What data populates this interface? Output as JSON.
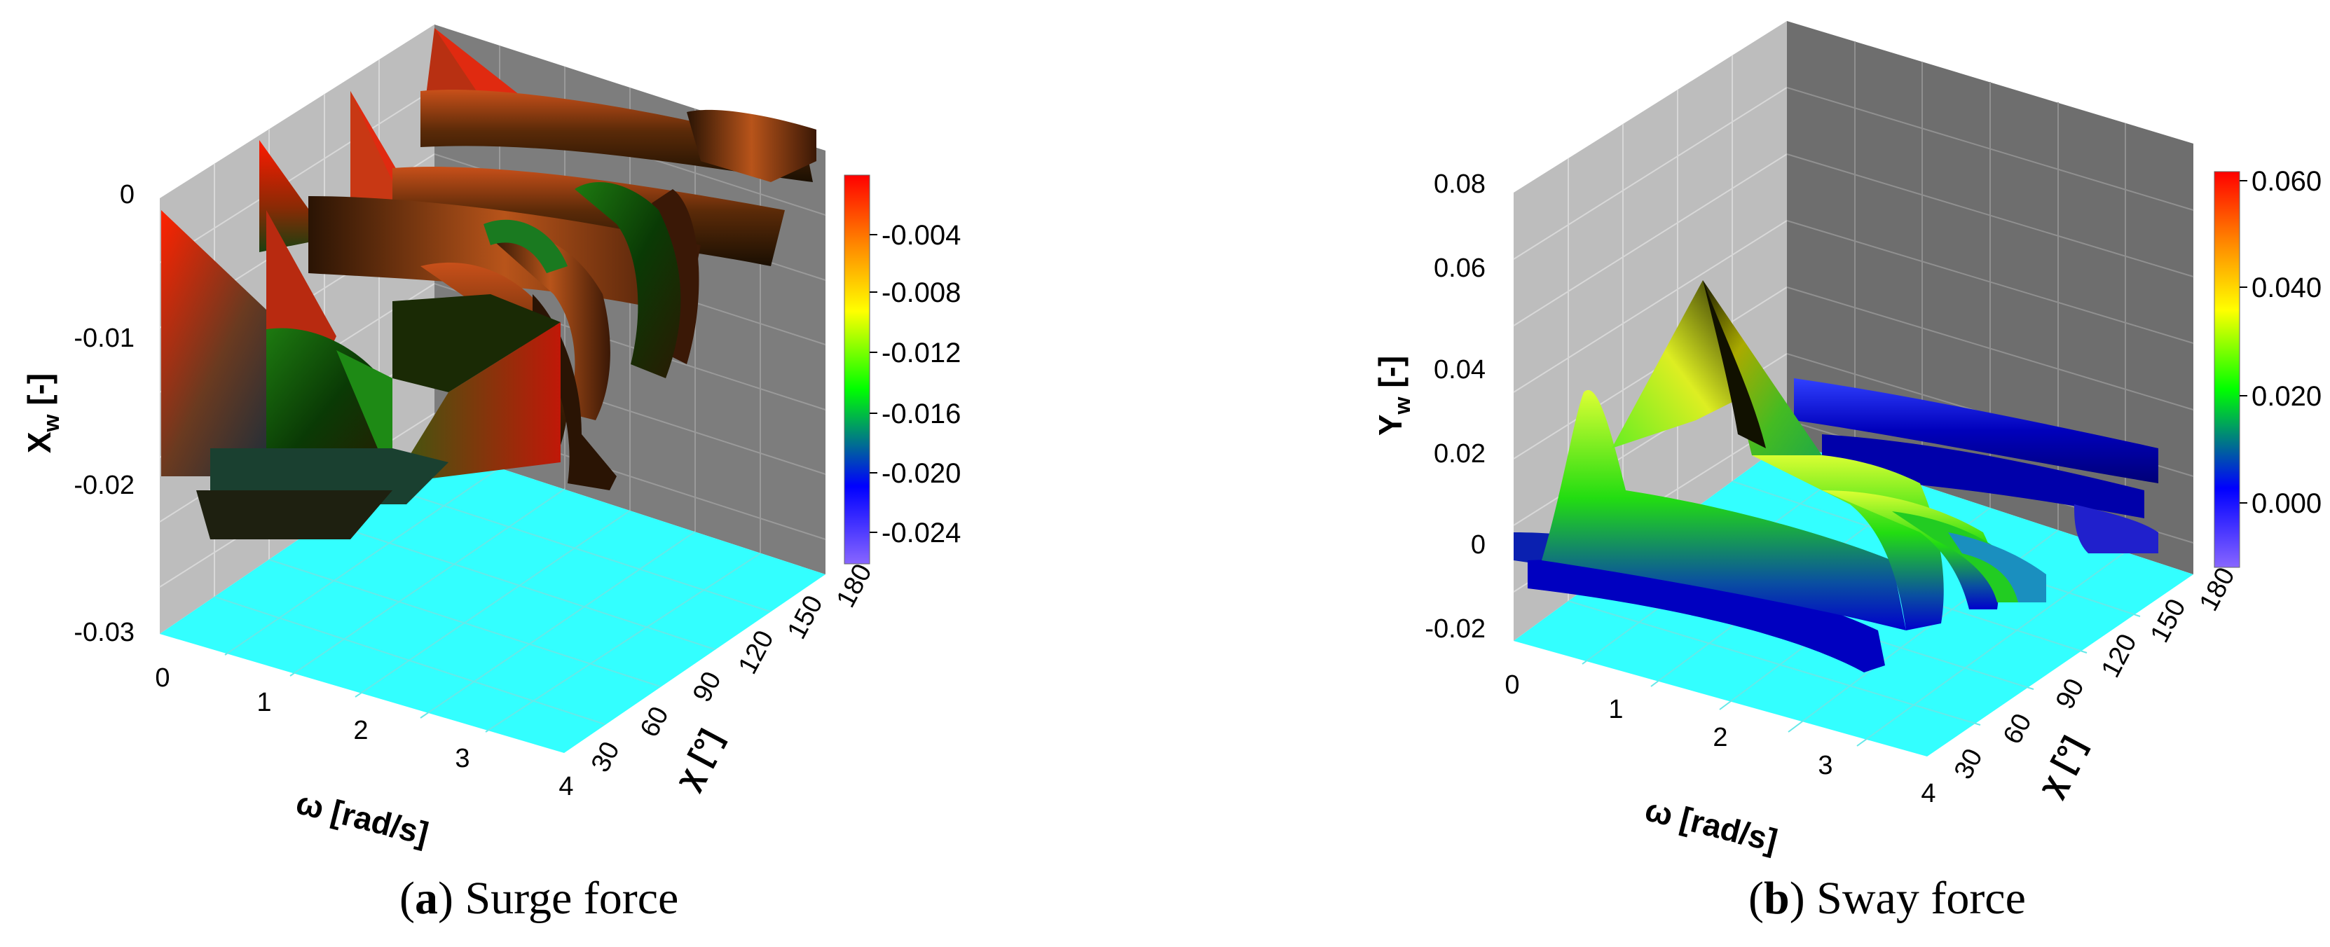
{
  "captions": [
    {
      "paren_open": "(",
      "letter": "a",
      "rest": ") Surge force"
    },
    {
      "paren_open": "(",
      "letter": "b",
      "rest": ") Sway force"
    }
  ],
  "chart_data": [
    {
      "type": "surface3d",
      "title": "",
      "xlabel": "ω [rad/s]",
      "ylabel": "χ [°]",
      "zlabel_main": "X",
      "zlabel_sub": "w",
      "zlabel_unit": " [-]",
      "x_ticks": [
        "0",
        "1",
        "2",
        "3",
        "4"
      ],
      "y_ticks": [
        "30",
        "60",
        "90",
        "120",
        "150",
        "180"
      ],
      "z_ticks": [
        "0",
        "-0.01",
        "-0.02",
        "-0.03"
      ],
      "xlim": [
        0,
        4
      ],
      "ylim": [
        0,
        180
      ],
      "zlim": [
        -0.03,
        0
      ],
      "colorbar": {
        "ticks": [
          "-0.004",
          "-0.008",
          "-0.012",
          "-0.016",
          "-0.020",
          "-0.024"
        ],
        "range": [
          -0.026,
          -0.001
        ],
        "colors": [
          "#8866ff",
          "#0000ff",
          "#00ff00",
          "#ffff00",
          "#ff8800",
          "#ff0000"
        ]
      },
      "floor_color": "#33ffff",
      "surface_dark_color": "#2a1a05",
      "peaks": [
        {
          "chi": 0,
          "omega": 0.05,
          "value": -0.0005
        },
        {
          "chi": 30,
          "omega": 0.05,
          "value": -0.0003
        },
        {
          "chi": 60,
          "omega": 0.05,
          "value": -0.0002
        },
        {
          "chi": 90,
          "omega": 0.05,
          "value": -0.0001
        }
      ],
      "grid": true
    },
    {
      "type": "surface3d",
      "title": "",
      "xlabel": "ω [rad/s]",
      "ylabel": "χ [°]",
      "zlabel_main": "Y",
      "zlabel_sub": "w",
      "zlabel_unit": " [-]",
      "x_ticks": [
        "0",
        "1",
        "2",
        "3",
        "4"
      ],
      "y_ticks": [
        "30",
        "60",
        "90",
        "120",
        "150",
        "180"
      ],
      "z_ticks": [
        "0.08",
        "0.06",
        "0.04",
        "0.02",
        "0",
        "-0.02"
      ],
      "xlim": [
        0,
        4
      ],
      "ylim": [
        0,
        180
      ],
      "zlim": [
        -0.02,
        0.08
      ],
      "colorbar": {
        "ticks": [
          "0.060",
          "0.040",
          "0.020",
          "0.000"
        ],
        "range": [
          -0.012,
          0.062
        ],
        "colors": [
          "#8866ff",
          "#0000ff",
          "#00ff00",
          "#ffff00",
          "#ff8800",
          "#ff0000"
        ]
      },
      "floor_color": "#33ffff",
      "peaks": [
        {
          "chi": 60,
          "omega": 0.6,
          "value": 0.058
        }
      ],
      "grid": true
    }
  ]
}
